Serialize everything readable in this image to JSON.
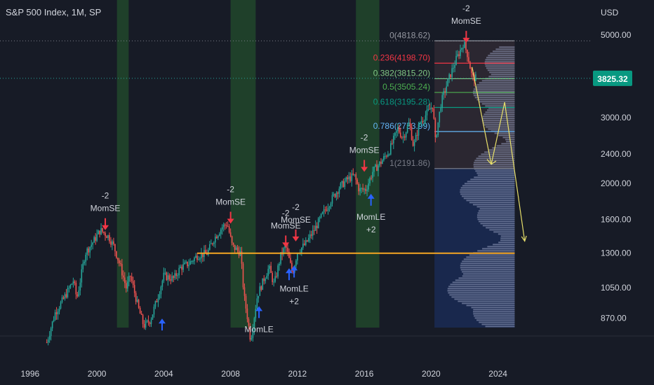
{
  "header": {
    "title": "S&P 500 Index, 1M, SP"
  },
  "chart_data": {
    "type": "candlestick",
    "currency_label": "USD",
    "y_scale": "log",
    "y_ticks": [
      870,
      1050,
      1300,
      1600,
      2000,
      2400,
      3000,
      5000
    ],
    "y_tick_labels": [
      "870.00",
      "1050.00",
      "1300.00",
      "1600.00",
      "2000.00",
      "2400.00",
      "3000.00",
      "5000.00"
    ],
    "x_ticks": [
      "1996",
      "2000",
      "2004",
      "2008",
      "2012",
      "2016",
      "2020",
      "2024"
    ],
    "ylim": [
      780,
      6200
    ],
    "xlim": [
      1994.2,
      2029.6
    ],
    "current_price": "3825.32",
    "current_price_value": 3825.32,
    "price_path": [
      [
        1997.0,
        750
      ],
      [
        1997.5,
        900
      ],
      [
        1998.0,
        980
      ],
      [
        1998.6,
        1100
      ],
      [
        1998.8,
        980
      ],
      [
        1999.3,
        1300
      ],
      [
        1999.8,
        1400
      ],
      [
        2000.2,
        1500
      ],
      [
        2000.7,
        1440
      ],
      [
        2001.0,
        1360
      ],
      [
        2001.4,
        1200
      ],
      [
        2001.75,
        1050
      ],
      [
        2002.0,
        1130
      ],
      [
        2002.5,
        920
      ],
      [
        2002.8,
        830
      ],
      [
        2003.2,
        860
      ],
      [
        2003.6,
        980
      ],
      [
        2004.0,
        1130
      ],
      [
        2004.6,
        1110
      ],
      [
        2005.0,
        1190
      ],
      [
        2005.5,
        1220
      ],
      [
        2006.0,
        1280
      ],
      [
        2006.6,
        1300
      ],
      [
        2007.0,
        1420
      ],
      [
        2007.5,
        1530
      ],
      [
        2007.8,
        1560
      ],
      [
        2008.1,
        1360
      ],
      [
        2008.6,
        1300
      ],
      [
        2008.8,
        1000
      ],
      [
        2009.0,
        880
      ],
      [
        2009.2,
        760
      ],
      [
        2009.6,
        1000
      ],
      [
        2010.0,
        1110
      ],
      [
        2010.3,
        1190
      ],
      [
        2010.6,
        1070
      ],
      [
        2011.0,
        1280
      ],
      [
        2011.3,
        1360
      ],
      [
        2011.7,
        1150
      ],
      [
        2012.0,
        1310
      ],
      [
        2012.5,
        1380
      ],
      [
        2013.0,
        1500
      ],
      [
        2013.5,
        1650
      ],
      [
        2014.0,
        1800
      ],
      [
        2014.5,
        1950
      ],
      [
        2015.0,
        2050
      ],
      [
        2015.4,
        2100
      ],
      [
        2015.7,
        1920
      ],
      [
        2016.1,
        1930
      ],
      [
        2016.5,
        2150
      ],
      [
        2017.0,
        2280
      ],
      [
        2017.5,
        2450
      ],
      [
        2018.0,
        2800
      ],
      [
        2018.3,
        2650
      ],
      [
        2018.7,
        2900
      ],
      [
        2018.95,
        2500
      ],
      [
        2019.3,
        2900
      ],
      [
        2019.8,
        3100
      ],
      [
        2020.1,
        3250
      ],
      [
        2020.25,
        2600
      ],
      [
        2020.6,
        3300
      ],
      [
        2021.0,
        3750
      ],
      [
        2021.5,
        4300
      ],
      [
        2021.95,
        4766
      ],
      [
        2022.2,
        4400
      ],
      [
        2022.45,
        3850
      ],
      [
        2022.7,
        3825
      ]
    ],
    "bands": [
      {
        "from": 2001.2,
        "to": 2001.9
      },
      {
        "from": 2008.0,
        "to": 2009.5
      },
      {
        "from": 2015.5,
        "to": 2016.9
      }
    ],
    "horizontal_line": {
      "value": 1300,
      "from": 2006.0,
      "to": 2025.0,
      "color": "#f5a623"
    },
    "fib_box": {
      "from": 2020.2,
      "to": 2025.0,
      "high": 4818.62,
      "low": 2191.86
    },
    "fib_levels": [
      {
        "label": "0(4818.62)",
        "value": 4818.62,
        "color": "#9598a1"
      },
      {
        "label": "0.236(4198.70)",
        "value": 4198.7,
        "color": "#f23645"
      },
      {
        "label": "0.382(3815.20)",
        "value": 3815.2,
        "color": "#81c784"
      },
      {
        "label": "0.5(3505.24)",
        "value": 3505.24,
        "color": "#4caf50"
      },
      {
        "label": "0.618(3195.28)",
        "value": 3195.28,
        "color": "#089981"
      },
      {
        "label": "0.786(2753.99)",
        "value": 2753.99,
        "color": "#64b5f6"
      },
      {
        "label": "1(2191.86)",
        "value": 2191.86,
        "color": "#787b86"
      }
    ],
    "signals": [
      {
        "text": "-2",
        "text2": "MomSE",
        "x": 2000.5,
        "y": 1480,
        "dir": "down",
        "color": "#f23645",
        "label_pos": "above"
      },
      {
        "text": "-2",
        "text2": "MomSE",
        "x": 2008.0,
        "y": 1540,
        "dir": "down",
        "color": "#f23645",
        "label_pos": "above"
      },
      {
        "text": "-2",
        "text2": "MomSE",
        "x": 2011.9,
        "y": 1380,
        "dir": "down",
        "color": "#f23645",
        "label_pos": "above"
      },
      {
        "text": "-2",
        "text2": "MomSE",
        "x": 2011.3,
        "y": 1330,
        "dir": "down",
        "color": "#f23645",
        "label_pos": "above_small"
      },
      {
        "text": "-2",
        "text2": "MomSE",
        "x": 2016.0,
        "y": 2120,
        "dir": "down",
        "color": "#f23645",
        "label_pos": "above"
      },
      {
        "text": "-2",
        "text2": "MomSE",
        "x": 2022.1,
        "y": 4700,
        "dir": "down",
        "color": "#f23645",
        "label_pos": "above"
      },
      {
        "text": "",
        "text2": "",
        "x": 2003.9,
        "y": 880,
        "dir": "up",
        "color": "#2962ff",
        "label_pos": "none"
      },
      {
        "text": "MomLE",
        "text2": "+2",
        "x": 2016.4,
        "y": 1900,
        "dir": "up",
        "color": "#2962ff",
        "label_pos": "below"
      },
      {
        "text": "MomLE",
        "text2": "+2",
        "x": 2011.8,
        "y": 1220,
        "dir": "up",
        "color": "#2962ff",
        "label_pos": "below"
      },
      {
        "text": "",
        "text2": "",
        "x": 2011.5,
        "y": 1200,
        "dir": "up",
        "color": "#2962ff",
        "label_pos": "none"
      },
      {
        "text": "MomLE",
        "text2": "",
        "x": 2009.7,
        "y": 950,
        "dir": "up",
        "color": "#2962ff",
        "label_pos": "below"
      }
    ],
    "projection_path": [
      [
        2022.45,
        4100
      ],
      [
        2023.6,
        2250
      ],
      [
        2024.4,
        3300
      ],
      [
        2025.6,
        1400
      ]
    ],
    "volume_profile_color": "#9aa4c4"
  }
}
